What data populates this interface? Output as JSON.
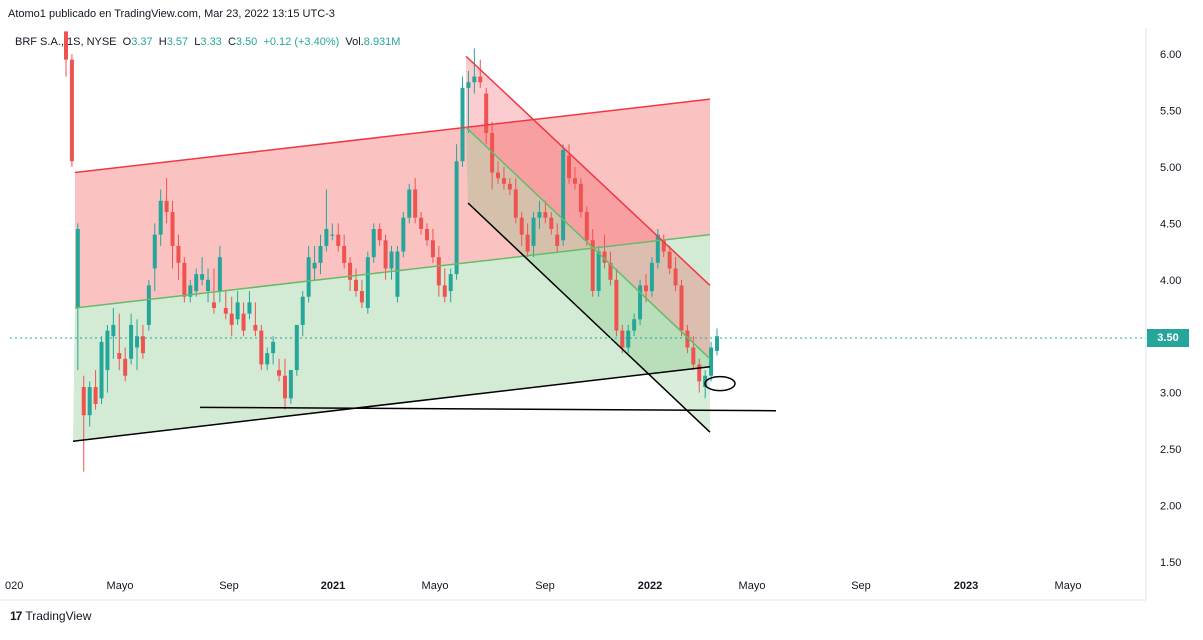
{
  "header": {
    "publisher": "Atomo1 publicado en TradingView.com, Mar 23, 2022 13:15 UTC-3"
  },
  "legend": {
    "symbol": "BRF S.A.",
    "interval": "1S",
    "exchange": "NYSE",
    "open_label": "O",
    "open": "3.37",
    "high_label": "H",
    "high": "3.57",
    "low_label": "L",
    "low": "3.33",
    "close_label": "C",
    "close": "3.50",
    "change": "+0.12 (+3.40%)",
    "volume_label": "Vol.",
    "volume": "8.931M"
  },
  "footer": {
    "brand": "TradingView",
    "logo": "17"
  },
  "price_tag": "3.50",
  "colors": {
    "up": "#26a69a",
    "down": "#ef5350",
    "red_zone": "#f8a9a6",
    "green_zone": "#c8e6c9",
    "red_line": "#f23645",
    "green_line": "#66bb6a",
    "black_line": "#000000"
  },
  "chart_data": {
    "type": "candlestick",
    "y_axis": {
      "ticks": [
        "6.00",
        "5.50",
        "5.00",
        "4.50",
        "4.00",
        "3.50",
        "3.00",
        "2.50",
        "2.00",
        "1.50"
      ],
      "range": [
        1.45,
        6.2
      ]
    },
    "x_axis": {
      "ticks": [
        "020",
        "Mayo",
        "Sep",
        "2021",
        "Mayo",
        "Sep",
        "2022",
        "Mayo",
        "Sep",
        "2023",
        "Mayo"
      ],
      "bold": [
        "2021",
        "2022",
        "2023"
      ]
    },
    "last_price": 3.5,
    "candles": [
      [
        6.2,
        6.2,
        5.8,
        5.95
      ],
      [
        5.95,
        6.0,
        5.0,
        5.05
      ],
      [
        3.75,
        4.5,
        3.2,
        4.45
      ],
      [
        3.05,
        3.15,
        2.3,
        2.8
      ],
      [
        2.8,
        3.1,
        2.7,
        3.05
      ],
      [
        3.05,
        3.2,
        2.85,
        2.9
      ],
      [
        2.95,
        3.5,
        2.9,
        3.45
      ],
      [
        3.2,
        3.6,
        3.0,
        3.55
      ],
      [
        3.5,
        3.75,
        3.3,
        3.6
      ],
      [
        3.35,
        3.7,
        3.2,
        3.3
      ],
      [
        3.3,
        3.4,
        3.1,
        3.15
      ],
      [
        3.3,
        3.7,
        3.25,
        3.6
      ],
      [
        3.4,
        3.65,
        3.2,
        3.5
      ],
      [
        3.5,
        3.6,
        3.3,
        3.35
      ],
      [
        3.6,
        4.0,
        3.55,
        3.95
      ],
      [
        4.1,
        4.5,
        3.9,
        4.4
      ],
      [
        4.4,
        4.8,
        4.3,
        4.7
      ],
      [
        4.7,
        4.9,
        4.5,
        4.6
      ],
      [
        4.6,
        4.7,
        4.1,
        4.3
      ],
      [
        4.3,
        4.4,
        4.0,
        4.15
      ],
      [
        4.15,
        4.2,
        3.8,
        3.85
      ],
      [
        3.85,
        4.0,
        3.8,
        3.95
      ],
      [
        3.9,
        4.1,
        3.85,
        4.05
      ],
      [
        4.0,
        4.2,
        3.95,
        4.05
      ],
      [
        3.9,
        4.1,
        3.8,
        4.0
      ],
      [
        3.8,
        4.1,
        3.7,
        3.75
      ],
      [
        3.9,
        4.3,
        3.8,
        4.2
      ],
      [
        3.75,
        3.9,
        3.65,
        3.7
      ],
      [
        3.7,
        3.85,
        3.5,
        3.6
      ],
      [
        3.65,
        3.9,
        3.6,
        3.8
      ],
      [
        3.7,
        3.8,
        3.5,
        3.55
      ],
      [
        3.7,
        3.9,
        3.65,
        3.8
      ],
      [
        3.6,
        3.8,
        3.5,
        3.55
      ],
      [
        3.55,
        3.6,
        3.2,
        3.25
      ],
      [
        3.25,
        3.4,
        3.2,
        3.35
      ],
      [
        3.35,
        3.5,
        3.25,
        3.45
      ],
      [
        3.2,
        3.3,
        3.1,
        3.15
      ],
      [
        3.15,
        3.3,
        2.85,
        2.95
      ],
      [
        2.95,
        3.2,
        2.9,
        3.2
      ],
      [
        3.2,
        3.6,
        3.15,
        3.6
      ],
      [
        3.6,
        3.9,
        3.5,
        3.85
      ],
      [
        3.85,
        4.3,
        3.8,
        4.2
      ],
      [
        4.1,
        4.3,
        4.0,
        4.15
      ],
      [
        4.15,
        4.4,
        4.05,
        4.3
      ],
      [
        4.3,
        4.8,
        4.25,
        4.45
      ],
      [
        4.4,
        4.5,
        4.35,
        4.4
      ],
      [
        4.4,
        4.5,
        4.25,
        4.3
      ],
      [
        4.3,
        4.4,
        4.1,
        4.15
      ],
      [
        4.15,
        4.2,
        3.9,
        4.0
      ],
      [
        4.0,
        4.1,
        3.85,
        3.9
      ],
      [
        3.9,
        4.0,
        3.75,
        3.8
      ],
      [
        3.75,
        4.25,
        3.7,
        4.2
      ],
      [
        4.2,
        4.5,
        4.15,
        4.45
      ],
      [
        4.45,
        4.5,
        4.3,
        4.35
      ],
      [
        4.35,
        4.4,
        4.0,
        4.1
      ],
      [
        4.1,
        4.3,
        4.0,
        4.25
      ],
      [
        3.85,
        4.3,
        3.8,
        4.25
      ],
      [
        4.25,
        4.6,
        4.2,
        4.55
      ],
      [
        4.55,
        4.85,
        4.5,
        4.8
      ],
      [
        4.8,
        4.9,
        4.5,
        4.55
      ],
      [
        4.55,
        4.6,
        4.4,
        4.45
      ],
      [
        4.45,
        4.5,
        4.3,
        4.35
      ],
      [
        4.35,
        4.45,
        4.15,
        4.2
      ],
      [
        4.2,
        4.3,
        3.85,
        3.95
      ],
      [
        3.95,
        4.1,
        3.8,
        3.85
      ],
      [
        3.9,
        4.1,
        3.8,
        4.05
      ],
      [
        4.05,
        5.2,
        4.0,
        5.05
      ],
      [
        5.05,
        5.8,
        5.0,
        5.7
      ],
      [
        5.7,
        5.85,
        5.3,
        5.75
      ],
      [
        5.75,
        6.05,
        5.65,
        5.8
      ],
      [
        5.8,
        5.95,
        5.7,
        5.75
      ],
      [
        5.65,
        5.7,
        5.2,
        5.3
      ],
      [
        5.3,
        5.4,
        4.8,
        4.95
      ],
      [
        4.95,
        5.05,
        4.85,
        4.9
      ],
      [
        4.9,
        5.0,
        4.8,
        4.85
      ],
      [
        4.85,
        4.9,
        4.75,
        4.8
      ],
      [
        4.8,
        4.9,
        4.5,
        4.55
      ],
      [
        4.55,
        4.6,
        4.3,
        4.4
      ],
      [
        4.4,
        4.5,
        4.2,
        4.25
      ],
      [
        4.3,
        4.6,
        4.2,
        4.55
      ],
      [
        4.55,
        4.7,
        4.45,
        4.6
      ],
      [
        4.6,
        4.7,
        4.5,
        4.55
      ],
      [
        4.55,
        4.6,
        4.4,
        4.45
      ],
      [
        4.4,
        4.5,
        4.25,
        4.3
      ],
      [
        4.35,
        5.2,
        4.3,
        5.15
      ],
      [
        5.1,
        5.2,
        4.85,
        4.9
      ],
      [
        4.9,
        5.0,
        4.8,
        4.85
      ],
      [
        4.85,
        4.9,
        4.55,
        4.6
      ],
      [
        4.6,
        4.65,
        4.3,
        4.35
      ],
      [
        4.35,
        4.45,
        3.85,
        3.9
      ],
      [
        3.9,
        4.3,
        3.85,
        4.25
      ],
      [
        4.25,
        4.4,
        4.1,
        4.15
      ],
      [
        4.15,
        4.25,
        3.95,
        4.0
      ],
      [
        4.0,
        4.1,
        3.5,
        3.55
      ],
      [
        3.55,
        3.6,
        3.35,
        3.4
      ],
      [
        3.4,
        3.6,
        3.35,
        3.55
      ],
      [
        3.55,
        3.7,
        3.5,
        3.65
      ],
      [
        3.65,
        4.0,
        3.6,
        3.95
      ],
      [
        3.95,
        4.05,
        3.8,
        3.9
      ],
      [
        3.9,
        4.2,
        3.85,
        4.15
      ],
      [
        4.15,
        4.45,
        4.1,
        4.4
      ],
      [
        4.35,
        4.4,
        4.2,
        4.25
      ],
      [
        4.25,
        4.3,
        4.05,
        4.1
      ],
      [
        4.1,
        4.2,
        3.9,
        3.95
      ],
      [
        3.95,
        4.0,
        3.5,
        3.55
      ],
      [
        3.55,
        3.6,
        3.35,
        3.4
      ],
      [
        3.4,
        3.5,
        3.2,
        3.25
      ],
      [
        3.25,
        3.3,
        3.0,
        3.1
      ],
      [
        3.05,
        3.2,
        2.95,
        3.15
      ],
      [
        3.15,
        3.45,
        3.1,
        3.4
      ],
      [
        3.37,
        3.57,
        3.33,
        3.5
      ]
    ],
    "annotations": {
      "red_channel": {
        "upper": [
          [
            75,
            4.95
          ],
          [
            710,
            5.6
          ]
        ],
        "lower": [
          [
            75,
            3.75
          ],
          [
            710,
            4.4
          ]
        ]
      },
      "green_channel": {
        "upper": [
          [
            75,
            3.75
          ],
          [
            710,
            4.4
          ]
        ],
        "lower": [
          [
            73,
            2.57
          ],
          [
            710,
            3.23
          ]
        ]
      },
      "falling_wedge": {
        "upper": [
          [
            466,
            5.98
          ],
          [
            710,
            3.95
          ]
        ],
        "lower": [
          [
            468,
            4.68
          ],
          [
            710,
            2.65
          ]
        ],
        "mid": [
          [
            466,
            5.35
          ],
          [
            710,
            3.3
          ]
        ]
      },
      "horizontal_support": [
        [
          200,
          2.87
        ],
        [
          776,
          2.84
        ]
      ],
      "ellipse": [
        720,
        3.08
      ]
    }
  }
}
